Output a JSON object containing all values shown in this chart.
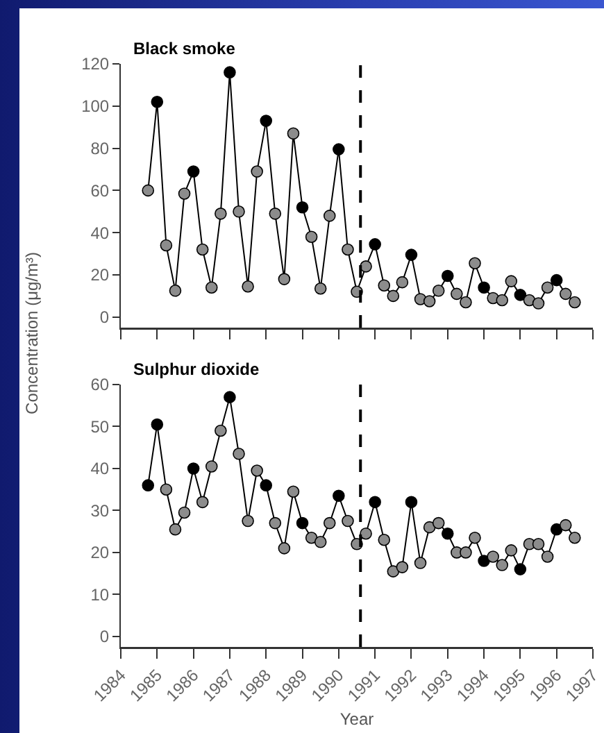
{
  "chart_data": [
    {
      "type": "line",
      "title": "Black smoke",
      "ylabel": "Concentration (μg/m³)",
      "x": [
        1984.75,
        1985,
        1985.25,
        1985.5,
        1985.75,
        1986,
        1986.25,
        1986.5,
        1986.75,
        1987,
        1987.25,
        1987.5,
        1987.75,
        1988,
        1988.25,
        1988.5,
        1988.75,
        1989,
        1989.25,
        1989.5,
        1989.75,
        1990,
        1990.25,
        1990.5,
        1990.75,
        1991,
        1991.25,
        1991.5,
        1991.75,
        1992,
        1992.25,
        1992.5,
        1992.75,
        1993,
        1993.25,
        1993.5,
        1993.75,
        1994,
        1994.25,
        1994.5,
        1994.75,
        1995,
        1995.25,
        1995.5,
        1995.75,
        1996,
        1996.25,
        1996.5
      ],
      "series": [
        {
          "color": "#000000",
          "colors": [
            "#8c8c8c",
            "#000000",
            "#8c8c8c",
            "#8c8c8c",
            "#8c8c8c",
            "#000000",
            "#8c8c8c",
            "#8c8c8c",
            "#8c8c8c",
            "#000000",
            "#8c8c8c",
            "#8c8c8c",
            "#8c8c8c",
            "#000000",
            "#8c8c8c",
            "#8c8c8c",
            "#8c8c8c",
            "#000000",
            "#8c8c8c",
            "#8c8c8c",
            "#8c8c8c",
            "#000000",
            "#8c8c8c",
            "#8c8c8c",
            "#8c8c8c",
            "#000000",
            "#8c8c8c",
            "#8c8c8c",
            "#8c8c8c",
            "#000000",
            "#8c8c8c",
            "#8c8c8c",
            "#8c8c8c",
            "#000000",
            "#8c8c8c",
            "#8c8c8c",
            "#8c8c8c",
            "#000000",
            "#8c8c8c",
            "#8c8c8c",
            "#8c8c8c",
            "#000000",
            "#8c8c8c",
            "#8c8c8c",
            "#8c8c8c",
            "#000000",
            "#8c8c8c",
            "#8c8c8c"
          ],
          "values": [
            60,
            102,
            34,
            12.5,
            58.5,
            69,
            32,
            14,
            49,
            116,
            50,
            14.5,
            69,
            93,
            49,
            18,
            87,
            52,
            38,
            13.5,
            48,
            79.5,
            32,
            12,
            24,
            34.5,
            15,
            10,
            16.5,
            29.5,
            8.5,
            7.5,
            12.5,
            19.5,
            11,
            7,
            25.5,
            14,
            9,
            8,
            17,
            10.5,
            8,
            6.5,
            14,
            17.5,
            11,
            7
          ]
        }
      ],
      "xlim": [
        1984,
        1997
      ],
      "xticks": [
        1984,
        1985,
        1986,
        1987,
        1988,
        1989,
        1990,
        1991,
        1992,
        1993,
        1994,
        1995,
        1996,
        1997
      ],
      "ylim": [
        -5,
        120
      ],
      "yticks": [
        0,
        20,
        40,
        60,
        80,
        100,
        120
      ],
      "ref_lines": [
        {
          "axis": "x",
          "value": 1990.6,
          "color": "#000000",
          "line_style": "dashed"
        }
      ],
      "tick_labels": "y",
      "marker": "circle",
      "line_style": "solid",
      "grid": false
    },
    {
      "type": "line",
      "title": "Sulphur dioxide",
      "xlabel": "Year",
      "x": [
        1984.75,
        1985,
        1985.25,
        1985.5,
        1985.75,
        1986,
        1986.25,
        1986.5,
        1986.75,
        1987,
        1987.25,
        1987.5,
        1987.75,
        1988,
        1988.25,
        1988.5,
        1988.75,
        1989,
        1989.25,
        1989.5,
        1989.75,
        1990,
        1990.25,
        1990.5,
        1990.75,
        1991,
        1991.25,
        1991.5,
        1991.75,
        1992,
        1992.25,
        1992.5,
        1992.75,
        1993,
        1993.25,
        1993.5,
        1993.75,
        1994,
        1994.25,
        1994.5,
        1994.75,
        1995,
        1995.25,
        1995.5,
        1995.75,
        1996,
        1996.25,
        1996.5
      ],
      "series": [
        {
          "color": "#000000",
          "colors": [
            "#000000",
            "#000000",
            "#8c8c8c",
            "#8c8c8c",
            "#8c8c8c",
            "#000000",
            "#8c8c8c",
            "#8c8c8c",
            "#8c8c8c",
            "#000000",
            "#8c8c8c",
            "#8c8c8c",
            "#8c8c8c",
            "#000000",
            "#8c8c8c",
            "#8c8c8c",
            "#8c8c8c",
            "#000000",
            "#8c8c8c",
            "#8c8c8c",
            "#8c8c8c",
            "#000000",
            "#8c8c8c",
            "#8c8c8c",
            "#8c8c8c",
            "#000000",
            "#8c8c8c",
            "#8c8c8c",
            "#8c8c8c",
            "#000000",
            "#8c8c8c",
            "#8c8c8c",
            "#8c8c8c",
            "#000000",
            "#8c8c8c",
            "#8c8c8c",
            "#8c8c8c",
            "#000000",
            "#8c8c8c",
            "#8c8c8c",
            "#8c8c8c",
            "#000000",
            "#8c8c8c",
            "#8c8c8c",
            "#8c8c8c",
            "#000000",
            "#8c8c8c",
            "#8c8c8c"
          ],
          "values": [
            36,
            50.5,
            35,
            25.5,
            29.5,
            40,
            32,
            40.5,
            49,
            57,
            43.5,
            27.5,
            39.5,
            36,
            27,
            21,
            34.5,
            27,
            23.5,
            22.5,
            27,
            33.5,
            27.5,
            22,
            24.5,
            32,
            23,
            15.5,
            16.5,
            32,
            17.5,
            26,
            27,
            24.5,
            20,
            20,
            23.5,
            18,
            19,
            17,
            20.5,
            16,
            22,
            22,
            19,
            25.5,
            26.5,
            23.5
          ]
        }
      ],
      "xlim": [
        1984,
        1997
      ],
      "xticks": [
        1984,
        1985,
        1986,
        1987,
        1988,
        1989,
        1990,
        1991,
        1992,
        1993,
        1994,
        1995,
        1996,
        1997
      ],
      "ylim": [
        -2.5,
        60
      ],
      "yticks": [
        0,
        10,
        20,
        30,
        40,
        50,
        60
      ],
      "ref_lines": [
        {
          "axis": "x",
          "value": 1990.6,
          "color": "#000000",
          "line_style": "dashed"
        }
      ],
      "marker": "circle",
      "line_style": "solid",
      "grid": false
    }
  ]
}
